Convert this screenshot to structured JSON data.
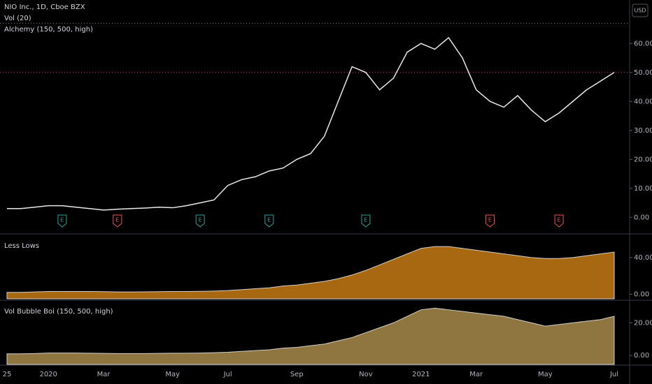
{
  "chart_data": [
    {
      "type": "line",
      "title": "NIO Inc., 1D, Cboe BZX",
      "currency": "USD",
      "indicators": [
        "Vol (20)",
        "Alchemy (150, 500, high)"
      ],
      "categories": [
        "25",
        null,
        null,
        "2020",
        null,
        null,
        null,
        "Mar",
        null,
        null,
        null,
        null,
        "May",
        null,
        null,
        null,
        "Jul",
        null,
        null,
        null,
        null,
        "Sep",
        null,
        null,
        null,
        null,
        "Nov",
        null,
        null,
        null,
        "2021",
        null,
        null,
        null,
        "Mar",
        null,
        null,
        null,
        null,
        "May",
        null,
        null,
        null,
        null,
        "Jul"
      ],
      "values": [
        3,
        3,
        3.5,
        4,
        4,
        3.5,
        3,
        2.5,
        2.8,
        3,
        3.2,
        3.5,
        3.3,
        4,
        5,
        6,
        11,
        13,
        14,
        16,
        17,
        20,
        22,
        28,
        40,
        52,
        50,
        44,
        48,
        57,
        60,
        58,
        62,
        55,
        44,
        40,
        38,
        42,
        37,
        33,
        36,
        40,
        44,
        47,
        50
      ],
      "color": "#e8e8e8",
      "events": [
        null,
        null,
        null,
        null,
        {
          "label": "E",
          "color": "#26a69a"
        },
        null,
        null,
        null,
        {
          "label": "E",
          "color": "#ef5350"
        },
        null,
        null,
        null,
        null,
        null,
        {
          "label": "E",
          "color": "#26a69a"
        },
        null,
        null,
        null,
        null,
        {
          "label": "E",
          "color": "#26a69a"
        },
        null,
        null,
        null,
        null,
        null,
        null,
        {
          "label": "E",
          "color": "#26a69a"
        },
        null,
        null,
        null,
        null,
        null,
        null,
        null,
        null,
        {
          "label": "E",
          "color": "#ef5350"
        },
        null,
        null,
        null,
        null,
        {
          "label": "E",
          "color": "#ef5350"
        },
        null,
        null,
        null,
        null
      ],
      "hlines": [
        {
          "value": 67,
          "color": "#888888"
        },
        {
          "value": 50,
          "color": "#e04040"
        }
      ],
      "ylim": [
        -5,
        75
      ],
      "yticks": [
        {
          "value": 0,
          "label": "0.00"
        },
        {
          "value": 10,
          "label": "10.00"
        },
        {
          "value": 20,
          "label": "20.00"
        },
        {
          "value": 30,
          "label": "30.00"
        },
        {
          "value": 40,
          "label": "40.00"
        },
        {
          "value": 50,
          "label": "50.00"
        },
        {
          "value": 60,
          "label": "60.00"
        }
      ]
    },
    {
      "type": "area",
      "title": "Less Lows",
      "color": "#c47a14",
      "values": [
        2,
        2,
        2.5,
        3,
        3,
        3,
        3,
        2.8,
        2.5,
        2.5,
        2.6,
        2.8,
        3,
        3,
        3.2,
        3.5,
        4,
        5,
        6,
        7,
        9,
        10,
        12,
        14,
        17,
        21,
        26,
        32,
        38,
        44,
        50,
        52,
        52,
        50,
        48,
        46,
        44,
        42,
        40,
        39,
        39,
        40,
        42,
        44,
        46
      ],
      "ylim": [
        -5,
        62
      ],
      "yticks": [
        {
          "value": 0,
          "label": "0.00"
        },
        {
          "value": 40,
          "label": "40.00"
        }
      ]
    },
    {
      "type": "area",
      "title": "Vol Bubble Boi (150, 500, high)",
      "color": "#a88b4c",
      "values": [
        1,
        1,
        1.2,
        1.5,
        1.5,
        1.5,
        1.4,
        1.3,
        1.2,
        1.2,
        1.2,
        1.3,
        1.4,
        1.4,
        1.5,
        1.7,
        2,
        2.5,
        3,
        3.5,
        4.5,
        5,
        6,
        7,
        9,
        11,
        14,
        17,
        20,
        24,
        28,
        29,
        28,
        27,
        26,
        25,
        24,
        22,
        20,
        18,
        19,
        20,
        21,
        22,
        24
      ],
      "ylim": [
        -5.5,
        33
      ],
      "yticks": [
        {
          "value": 0,
          "label": "0.00"
        },
        {
          "value": 20,
          "label": "20.00"
        }
      ]
    }
  ]
}
